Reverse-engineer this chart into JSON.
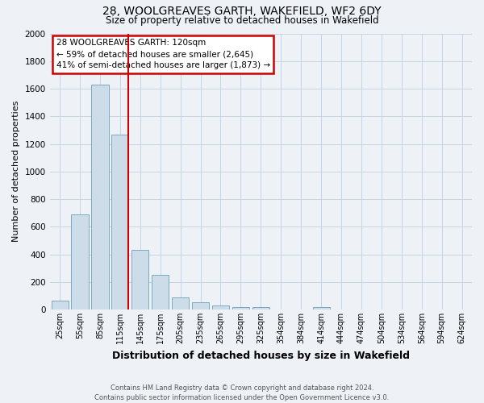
{
  "title": "28, WOOLGREAVES GARTH, WAKEFIELD, WF2 6DY",
  "subtitle": "Size of property relative to detached houses in Wakefield",
  "xlabel": "Distribution of detached houses by size in Wakefield",
  "ylabel": "Number of detached properties",
  "categories": [
    "25sqm",
    "55sqm",
    "85sqm",
    "115sqm",
    "145sqm",
    "175sqm",
    "205sqm",
    "235sqm",
    "265sqm",
    "295sqm",
    "325sqm",
    "354sqm",
    "384sqm",
    "414sqm",
    "444sqm",
    "474sqm",
    "504sqm",
    "534sqm",
    "564sqm",
    "594sqm",
    "624sqm"
  ],
  "values": [
    65,
    690,
    1630,
    1270,
    430,
    250,
    90,
    50,
    30,
    20,
    15,
    0,
    0,
    20,
    0,
    0,
    0,
    0,
    0,
    0,
    0
  ],
  "bar_color": "#ccdce8",
  "bar_edge_color": "#7aaabf",
  "vline_color": "#cc0000",
  "annotation_line1": "28 WOOLGREAVES GARTH: 120sqm",
  "annotation_line2": "← 59% of detached houses are smaller (2,645)",
  "annotation_line3": "41% of semi-detached houses are larger (1,873) →",
  "annotation_box_color": "#cc0000",
  "ylim": [
    0,
    2000
  ],
  "yticks": [
    0,
    200,
    400,
    600,
    800,
    1000,
    1200,
    1400,
    1600,
    1800,
    2000
  ],
  "footer_line1": "Contains HM Land Registry data © Crown copyright and database right 2024.",
  "footer_line2": "Contains public sector information licensed under the Open Government Licence v3.0.",
  "bg_color": "#eef2f7",
  "grid_color": "#c5d5e5",
  "title_fontsize": 10,
  "subtitle_fontsize": 8.5,
  "ylabel_fontsize": 8,
  "xlabel_fontsize": 9,
  "tick_fontsize": 7,
  "annotation_fontsize": 7.5,
  "footer_fontsize": 6
}
